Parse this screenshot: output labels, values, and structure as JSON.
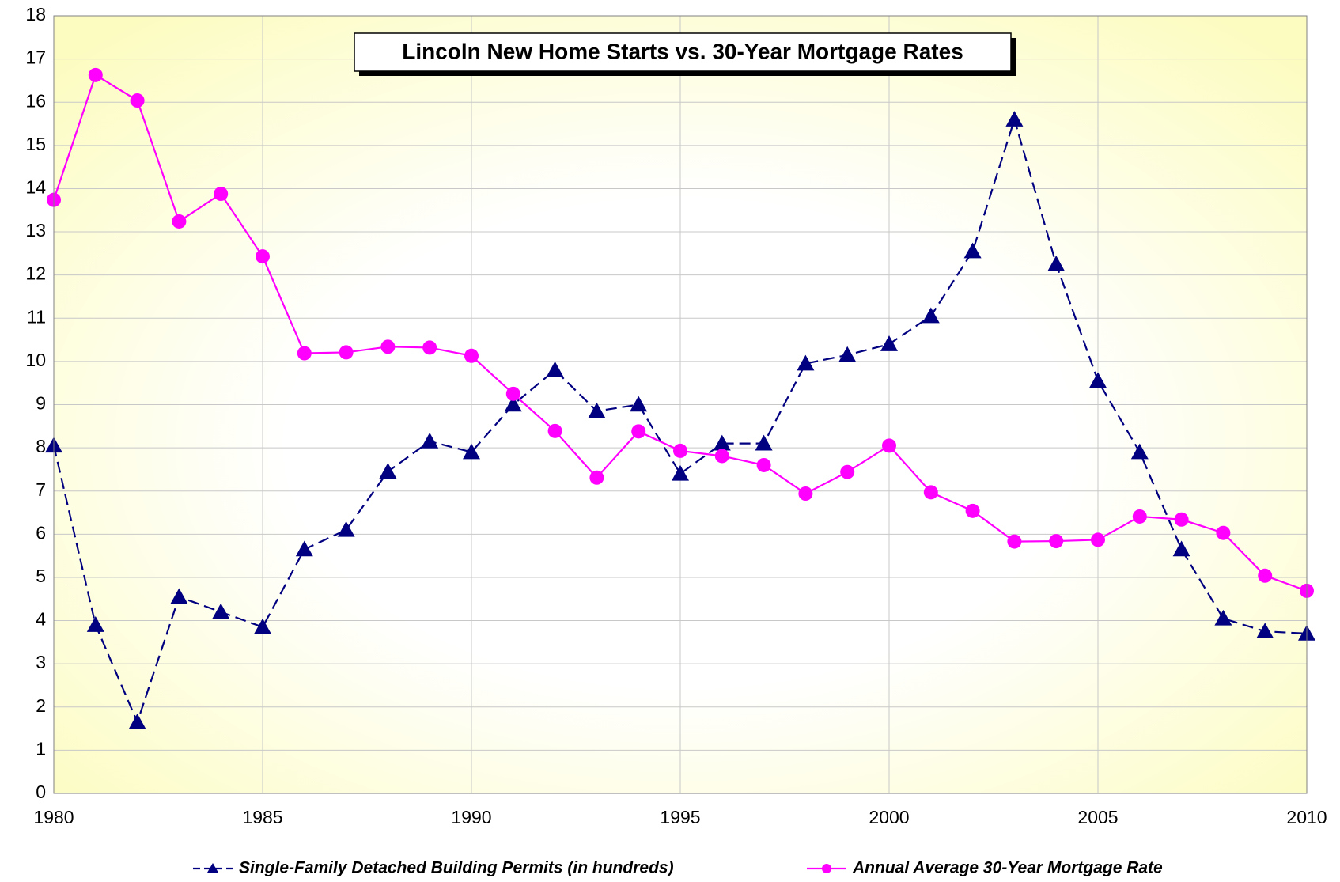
{
  "chart_data": {
    "type": "line",
    "title": "Lincoln New Home Starts vs. 30-Year Mortgage Rates",
    "x": [
      1980,
      1981,
      1982,
      1983,
      1984,
      1985,
      1986,
      1987,
      1988,
      1989,
      1990,
      1991,
      1992,
      1993,
      1994,
      1995,
      1996,
      1997,
      1998,
      1999,
      2000,
      2001,
      2002,
      2003,
      2004,
      2005,
      2006,
      2007,
      2008,
      2009,
      2010
    ],
    "series": [
      {
        "name": "Single-Family Detached Building Permits (in hundreds)",
        "color": "#000080",
        "dashed": true,
        "marker": "triangle",
        "values": [
          8.05,
          3.9,
          1.65,
          4.55,
          4.2,
          3.85,
          5.65,
          6.1,
          7.45,
          8.15,
          7.9,
          9.0,
          9.8,
          8.85,
          9.0,
          7.4,
          8.1,
          8.1,
          9.95,
          10.15,
          10.4,
          11.05,
          12.55,
          15.6,
          12.25,
          9.55,
          7.9,
          5.65,
          4.05,
          3.75,
          3.7
        ]
      },
      {
        "name": "Annual Average 30-Year Mortgage Rate",
        "color": "#ff00ff",
        "dashed": false,
        "marker": "circle",
        "values": [
          13.74,
          16.63,
          16.04,
          13.24,
          13.88,
          12.43,
          10.19,
          10.21,
          10.34,
          10.32,
          10.13,
          9.25,
          8.39,
          7.31,
          8.38,
          7.93,
          7.81,
          7.6,
          6.94,
          7.44,
          8.05,
          6.97,
          6.54,
          5.83,
          5.84,
          5.87,
          6.41,
          6.34,
          6.03,
          5.04,
          4.69
        ]
      }
    ],
    "xlim": [
      1980,
      2010
    ],
    "xticks": [
      1980,
      1985,
      1990,
      1995,
      2000,
      2005,
      2010
    ],
    "ylim": [
      0,
      18
    ],
    "yticks": [
      0,
      1,
      2,
      3,
      4,
      5,
      6,
      7,
      8,
      9,
      10,
      11,
      12,
      13,
      14,
      15,
      16,
      17,
      18
    ],
    "grid": true
  }
}
